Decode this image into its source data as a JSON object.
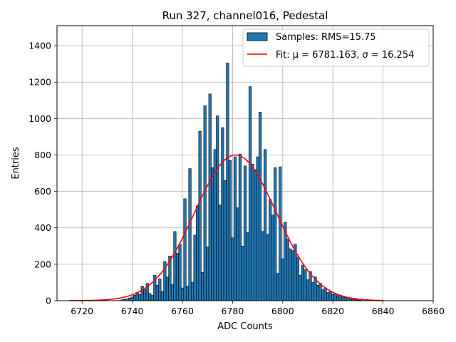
{
  "chart_data": {
    "type": "bar",
    "title": "Run 327, channel016, Pedestal",
    "xlabel": "ADC Counts",
    "ylabel": "Entries",
    "xlim": [
      6710,
      6860
    ],
    "ylim": [
      0,
      1510
    ],
    "x_ticks": [
      6720,
      6740,
      6760,
      6780,
      6800,
      6820,
      6840,
      6860
    ],
    "y_ticks": [
      0,
      200,
      400,
      600,
      800,
      1000,
      1200,
      1400
    ],
    "grid": true,
    "legend_position": "top-right",
    "colors": {
      "bars": "#1f77b4",
      "bar_edge": "#000000",
      "fit": "#ff0000"
    },
    "series": [
      {
        "name": "Samples: RMS=15.75",
        "type": "histogram",
        "bin_width": 1,
        "bins": [
          [
            6736,
            5
          ],
          [
            6737,
            8
          ],
          [
            6738,
            10
          ],
          [
            6739,
            15
          ],
          [
            6740,
            20
          ],
          [
            6741,
            30
          ],
          [
            6742,
            45
          ],
          [
            6743,
            35
          ],
          [
            6744,
            80
          ],
          [
            6745,
            60
          ],
          [
            6746,
            95
          ],
          [
            6747,
            40
          ],
          [
            6748,
            30
          ],
          [
            6749,
            140
          ],
          [
            6750,
            85
          ],
          [
            6751,
            120
          ],
          [
            6752,
            50
          ],
          [
            6753,
            215
          ],
          [
            6754,
            130
          ],
          [
            6755,
            245
          ],
          [
            6756,
            90
          ],
          [
            6757,
            380
          ],
          [
            6758,
            260
          ],
          [
            6759,
            310
          ],
          [
            6760,
            70
          ],
          [
            6761,
            560
          ],
          [
            6762,
            80
          ],
          [
            6763,
            725
          ],
          [
            6764,
            100
          ],
          [
            6765,
            360
          ],
          [
            6766,
            520
          ],
          [
            6767,
            930
          ],
          [
            6768,
            155
          ],
          [
            6769,
            1070
          ],
          [
            6770,
            295
          ],
          [
            6771,
            1135
          ],
          [
            6772,
            730
          ],
          [
            6773,
            830
          ],
          [
            6774,
            1015
          ],
          [
            6775,
            525
          ],
          [
            6776,
            950
          ],
          [
            6777,
            660
          ],
          [
            6778,
            1305
          ],
          [
            6779,
            770
          ],
          [
            6780,
            345
          ],
          [
            6781,
            790
          ],
          [
            6782,
            510
          ],
          [
            6783,
            805
          ],
          [
            6784,
            300
          ],
          [
            6785,
            740
          ],
          [
            6786,
            375
          ],
          [
            6787,
            1175
          ],
          [
            6788,
            750
          ],
          [
            6789,
            720
          ],
          [
            6790,
            790
          ],
          [
            6791,
            1035
          ],
          [
            6792,
            380
          ],
          [
            6793,
            830
          ],
          [
            6794,
            365
          ],
          [
            6795,
            555
          ],
          [
            6796,
            470
          ],
          [
            6797,
            730
          ],
          [
            6798,
            150
          ],
          [
            6799,
            735
          ],
          [
            6800,
            230
          ],
          [
            6801,
            430
          ],
          [
            6802,
            340
          ],
          [
            6803,
            285
          ],
          [
            6804,
            275
          ],
          [
            6805,
            310
          ],
          [
            6806,
            240
          ],
          [
            6807,
            140
          ],
          [
            6808,
            195
          ],
          [
            6809,
            170
          ],
          [
            6810,
            115
          ],
          [
            6811,
            160
          ],
          [
            6812,
            100
          ],
          [
            6813,
            130
          ],
          [
            6814,
            85
          ],
          [
            6815,
            95
          ],
          [
            6816,
            60
          ],
          [
            6817,
            70
          ],
          [
            6818,
            45
          ],
          [
            6819,
            50
          ],
          [
            6820,
            35
          ],
          [
            6821,
            40
          ],
          [
            6822,
            28
          ],
          [
            6823,
            30
          ],
          [
            6824,
            20
          ],
          [
            6825,
            18
          ],
          [
            6826,
            12
          ],
          [
            6827,
            10
          ],
          [
            6828,
            8
          ],
          [
            6829,
            6
          ],
          [
            6830,
            4
          ],
          [
            6831,
            3
          ]
        ]
      },
      {
        "name": "Fit: μ = 6781.163, σ = 16.254",
        "type": "gaussian",
        "mu": 6781.163,
        "sigma": 16.254,
        "amplitude": 800,
        "x_range": [
          6715,
          6840
        ]
      }
    ]
  }
}
